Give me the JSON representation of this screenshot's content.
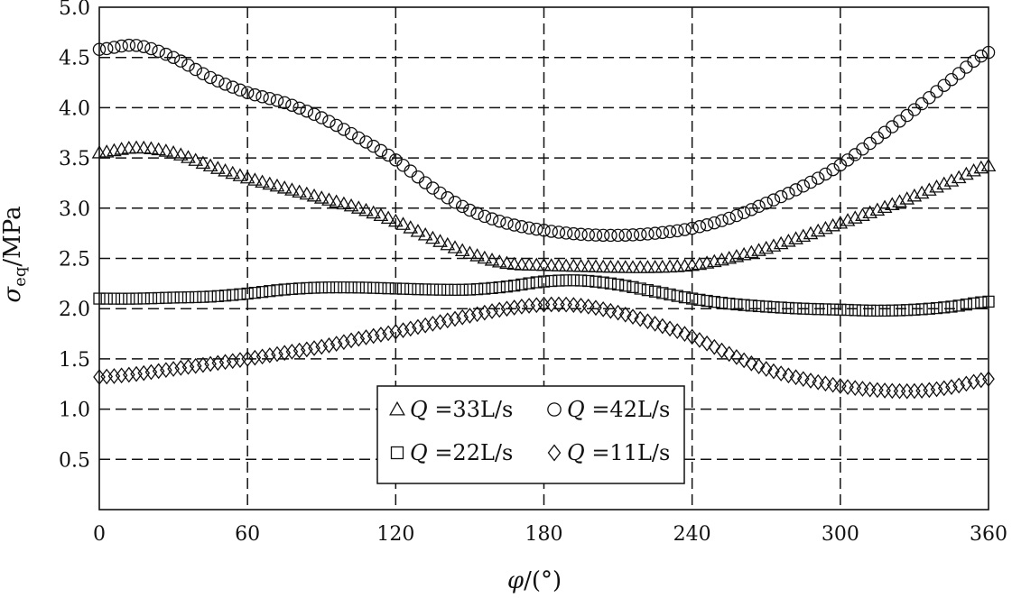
{
  "chart_data": {
    "type": "scatter",
    "xlabel_main": "φ",
    "xlabel_unit": "/(°)",
    "ylabel_main": "σ",
    "ylabel_sub": "eq",
    "ylabel_unit": "/MPa",
    "xlim": [
      0,
      360
    ],
    "ylim": [
      0,
      5.0
    ],
    "xticks": [
      0,
      60,
      120,
      180,
      240,
      300,
      360
    ],
    "xtick_labels": [
      "0",
      "60",
      "120",
      "180",
      "240",
      "300",
      "360"
    ],
    "yticks": [
      0.5,
      1.0,
      1.5,
      2.0,
      2.5,
      3.0,
      3.5,
      4.0,
      4.5,
      5.0
    ],
    "ytick_labels": [
      "0.5",
      "1.0",
      "1.5",
      "2.0",
      "2.5",
      "3.0",
      "3.5",
      "4.0",
      "4.5",
      "5.0"
    ],
    "grid": true,
    "legend_position": "bottom-center",
    "series": [
      {
        "name": "Q =33L/s",
        "legend_q": "Q",
        "legend_rest": " =33L/s",
        "marker": "triangle",
        "x": [
          0,
          15,
          30,
          45,
          60,
          75,
          90,
          105,
          120,
          135,
          150,
          165,
          180,
          195,
          210,
          225,
          240,
          255,
          270,
          285,
          300,
          315,
          330,
          345,
          360
        ],
        "y": [
          3.55,
          3.6,
          3.55,
          3.42,
          3.3,
          3.2,
          3.1,
          3.0,
          2.87,
          2.7,
          2.55,
          2.45,
          2.43,
          2.42,
          2.41,
          2.41,
          2.43,
          2.5,
          2.6,
          2.72,
          2.85,
          2.98,
          3.12,
          3.27,
          3.42
        ]
      },
      {
        "name": "Q =42L/s",
        "legend_q": "Q",
        "legend_rest": " =42L/s",
        "marker": "circle",
        "x": [
          0,
          15,
          30,
          45,
          60,
          75,
          90,
          105,
          120,
          135,
          150,
          165,
          180,
          195,
          210,
          225,
          240,
          255,
          270,
          285,
          300,
          315,
          330,
          345,
          360
        ],
        "y": [
          4.58,
          4.62,
          4.5,
          4.3,
          4.15,
          4.05,
          3.9,
          3.7,
          3.48,
          3.2,
          2.98,
          2.85,
          2.78,
          2.74,
          2.73,
          2.75,
          2.8,
          2.9,
          3.05,
          3.22,
          3.43,
          3.7,
          3.98,
          4.28,
          4.55
        ]
      },
      {
        "name": "Q =22L/s",
        "legend_q": "Q",
        "legend_rest": " =22L/s",
        "marker": "square",
        "x": [
          0,
          15,
          30,
          45,
          60,
          75,
          90,
          105,
          120,
          135,
          150,
          165,
          180,
          195,
          210,
          225,
          240,
          255,
          270,
          285,
          300,
          315,
          330,
          345,
          360
        ],
        "y": [
          2.1,
          2.1,
          2.11,
          2.12,
          2.15,
          2.19,
          2.21,
          2.21,
          2.2,
          2.19,
          2.19,
          2.22,
          2.27,
          2.28,
          2.24,
          2.17,
          2.1,
          2.05,
          2.02,
          2.0,
          1.99,
          1.98,
          1.99,
          2.02,
          2.07
        ]
      },
      {
        "name": "Q =11L/s",
        "legend_q": "Q",
        "legend_rest": " =11L/s",
        "marker": "diamond",
        "x": [
          0,
          15,
          30,
          45,
          60,
          75,
          90,
          105,
          120,
          135,
          150,
          165,
          180,
          195,
          210,
          225,
          240,
          255,
          270,
          285,
          300,
          315,
          330,
          345,
          360
        ],
        "y": [
          1.32,
          1.35,
          1.4,
          1.45,
          1.5,
          1.56,
          1.62,
          1.7,
          1.77,
          1.85,
          1.93,
          2.0,
          2.04,
          2.03,
          1.96,
          1.85,
          1.72,
          1.55,
          1.4,
          1.3,
          1.23,
          1.19,
          1.18,
          1.22,
          1.3
        ]
      }
    ],
    "legend_order": [
      0,
      1,
      2,
      3
    ]
  }
}
